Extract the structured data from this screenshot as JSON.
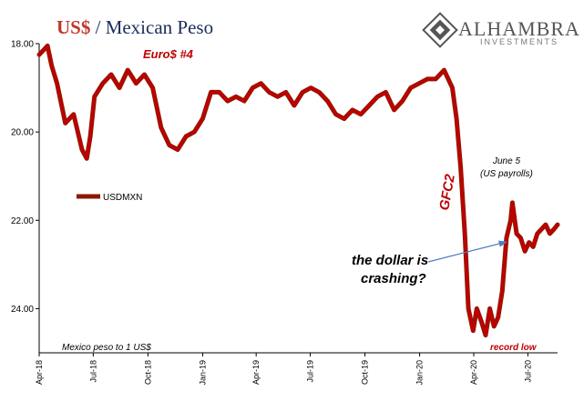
{
  "title_part1": "US$",
  "title_part2": " / Mexican Peso",
  "logo": {
    "name": "ALHAMBRA",
    "sub": "INVESTMENTS"
  },
  "annotations": {
    "euro": "Euro$ #4",
    "gfc": "GFC2",
    "june5_line1": "June 5",
    "june5_line2": "(US payrolls)",
    "crash_line1": "the dollar is",
    "crash_line2": "crashing?",
    "record_low": "record low",
    "footnote": "Mexico peso to 1 US$"
  },
  "colors": {
    "series": "#c00000",
    "series_dark": "#8b1a00",
    "arrow": "#4f7ec0",
    "title_red": "#c0392b",
    "title_blue": "#1a2b5e"
  },
  "chart_data": {
    "type": "line",
    "title": "US$ / Mexican Peso",
    "ylim": [
      18.0,
      25.0
    ],
    "y_inverted": true,
    "yticks": [
      "18.00",
      "20.00",
      "22.00",
      "24.00"
    ],
    "ytick_values": [
      18.0,
      20.0,
      22.0,
      24.0
    ],
    "xticks": [
      "Apr-18",
      "Jul-18",
      "Oct-18",
      "Jan-19",
      "Apr-19",
      "Jul-19",
      "Oct-19",
      "Jan-20",
      "Apr-20",
      "Jul-20"
    ],
    "xlim": [
      "2018-04-01",
      "2020-08-20"
    ],
    "legend": "left-middle",
    "series": [
      {
        "name": "USDMXN",
        "x": [
          "2018-04-01",
          "2018-04-08",
          "2018-04-15",
          "2018-04-22",
          "2018-05-01",
          "2018-05-15",
          "2018-05-29",
          "2018-06-12",
          "2018-06-20",
          "2018-06-26",
          "2018-07-03",
          "2018-07-17",
          "2018-07-31",
          "2018-08-14",
          "2018-08-28",
          "2018-09-11",
          "2018-09-25",
          "2018-10-09",
          "2018-10-23",
          "2018-11-06",
          "2018-11-20",
          "2018-12-04",
          "2018-12-18",
          "2019-01-01",
          "2019-01-15",
          "2019-01-29",
          "2019-02-12",
          "2019-02-26",
          "2019-03-12",
          "2019-03-26",
          "2019-04-09",
          "2019-04-23",
          "2019-05-07",
          "2019-05-21",
          "2019-06-04",
          "2019-06-18",
          "2019-07-02",
          "2019-07-16",
          "2019-07-30",
          "2019-08-13",
          "2019-08-27",
          "2019-09-10",
          "2019-09-24",
          "2019-10-08",
          "2019-10-22",
          "2019-11-05",
          "2019-11-19",
          "2019-12-03",
          "2019-12-17",
          "2019-12-31",
          "2020-01-14",
          "2020-01-28",
          "2020-02-11",
          "2020-02-25",
          "2020-03-03",
          "2020-03-10",
          "2020-03-17",
          "2020-03-23",
          "2020-03-31",
          "2020-04-06",
          "2020-04-14",
          "2020-04-21",
          "2020-04-28",
          "2020-05-05",
          "2020-05-12",
          "2020-05-19",
          "2020-05-26",
          "2020-06-02",
          "2020-06-05",
          "2020-06-12",
          "2020-06-19",
          "2020-06-26",
          "2020-07-03",
          "2020-07-10",
          "2020-07-17",
          "2020-07-24",
          "2020-07-31",
          "2020-08-07",
          "2020-08-14",
          "2020-08-20"
        ],
        "values": [
          18.25,
          18.15,
          18.05,
          18.5,
          18.9,
          19.8,
          19.6,
          20.4,
          20.6,
          20.1,
          19.2,
          18.9,
          18.7,
          19.0,
          18.6,
          18.9,
          18.7,
          19.0,
          19.9,
          20.3,
          20.4,
          20.1,
          20.0,
          19.7,
          19.1,
          19.1,
          19.3,
          19.2,
          19.3,
          19.0,
          18.9,
          19.1,
          19.2,
          19.1,
          19.4,
          19.1,
          19.0,
          19.1,
          19.3,
          19.6,
          19.7,
          19.5,
          19.6,
          19.4,
          19.2,
          19.1,
          19.5,
          19.3,
          19.0,
          18.9,
          18.8,
          18.8,
          18.6,
          19.0,
          19.7,
          20.8,
          22.3,
          24.0,
          24.5,
          24.0,
          24.3,
          24.6,
          24.0,
          24.4,
          24.2,
          23.6,
          22.4,
          22.0,
          21.6,
          22.3,
          22.4,
          22.7,
          22.5,
          22.6,
          22.3,
          22.2,
          22.1,
          22.3,
          22.2,
          22.1
        ]
      }
    ]
  }
}
